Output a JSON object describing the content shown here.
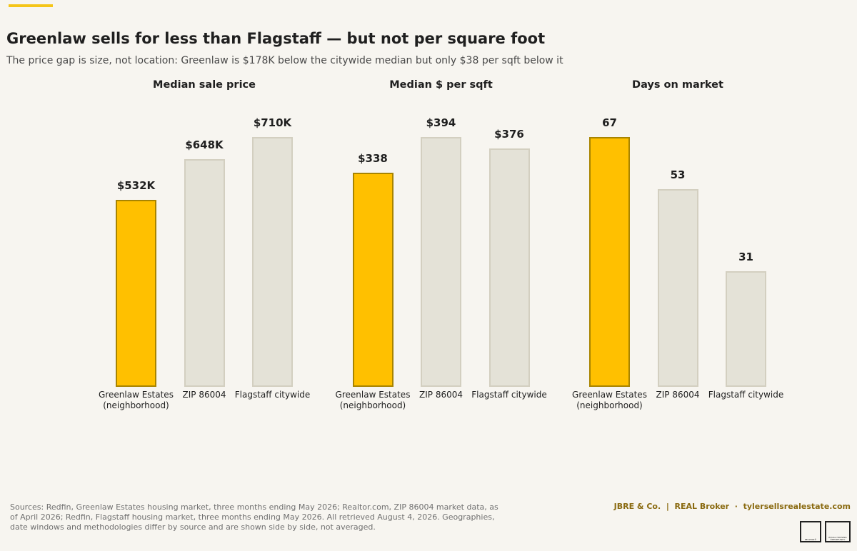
{
  "title": "Greenlaw sells for less than Flagstaff — but not per square foot",
  "subtitle": "The price gap is size, not location: Greenlaw is $178K below the citywide median but only $38 per sqft below it",
  "chart_data": [
    {
      "type": "bar",
      "title": "Median sale price",
      "categories": [
        "Greenlaw Estates\n(neighborhood)",
        "ZIP 86004",
        "Flagstaff citywide"
      ],
      "values": [
        532,
        648,
        710
      ],
      "value_labels": [
        "$532K",
        "$648K",
        "$710K"
      ],
      "colors": [
        "#ffc000",
        "#e4e2d7",
        "#e4e2d7"
      ]
    },
    {
      "type": "bar",
      "title": "Median $ per sqft",
      "categories": [
        "Greenlaw Estates\n(neighborhood)",
        "ZIP 86004",
        "Flagstaff citywide"
      ],
      "values": [
        338,
        394,
        376
      ],
      "value_labels": [
        "$338",
        "$394",
        "$376"
      ],
      "colors": [
        "#ffc000",
        "#e4e2d7",
        "#e4e2d7"
      ]
    },
    {
      "type": "bar",
      "title": "Days on market",
      "categories": [
        "Greenlaw Estates\n(neighborhood)",
        "ZIP 86004",
        "Flagstaff citywide"
      ],
      "values": [
        67,
        53,
        31
      ],
      "colors": [
        "#ffc000",
        "#e4e2d7",
        "#e4e2d7"
      ]
    }
  ],
  "sources": "Sources: Redfin, Greenlaw Estates housing market, three months ending May 2026; Realtor.com, ZIP 86004 market data, as of April 2026; Redfin, Flagstaff housing market, three months ending May 2026. All retrieved August 4, 2026. Geographies, date windows and methodologies differ by source and are shown side by side, not averaged.",
  "brand": [
    "JBRE & Co.",
    "REAL Broker",
    "tylersellsrealestate.com"
  ],
  "badges": [
    "REALTOR®",
    "EQUAL HOUSING OPPORTUNITY"
  ]
}
